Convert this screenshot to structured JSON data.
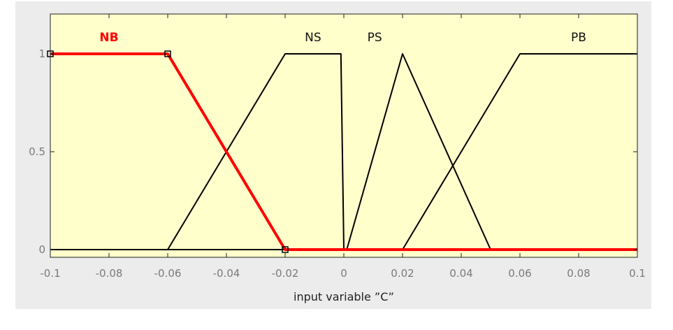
{
  "chart_data": {
    "type": "line",
    "title": "",
    "xlabel": "input variable ”C”",
    "ylabel": "",
    "xlim": [
      -0.1,
      0.1
    ],
    "ylim": [
      0,
      1
    ],
    "x_ticks": [
      -0.1,
      -0.08,
      -0.06,
      -0.04,
      -0.02,
      0,
      0.02,
      0.04,
      0.06,
      0.08,
      0.1
    ],
    "x_tick_labels": [
      "-0.1",
      "-0.08",
      "-0.06",
      "-0.04",
      "-0.02",
      "0",
      "0.02",
      "0.04",
      "0.06",
      "0.08",
      "0.1"
    ],
    "y_ticks": [
      0,
      0.5,
      1
    ],
    "y_tick_labels": [
      "0",
      "0.5",
      "1"
    ],
    "grid": false,
    "series": [
      {
        "name": "NB",
        "x": [
          -0.1,
          -0.06,
          -0.02,
          0.1
        ],
        "y": [
          1,
          1,
          0,
          0
        ],
        "color": "#ff0000",
        "selected": true
      },
      {
        "name": "NS",
        "x": [
          -0.1,
          -0.06,
          -0.02,
          -0.001,
          0,
          0.1
        ],
        "y": [
          0,
          0,
          1,
          1,
          0,
          0
        ],
        "color": "#000000"
      },
      {
        "name": "PS",
        "x": [
          -0.1,
          0.001,
          0.02,
          0.05,
          0.1
        ],
        "y": [
          0,
          0,
          1,
          0,
          0
        ],
        "color": "#000000"
      },
      {
        "name": "PB",
        "x": [
          -0.1,
          0.02,
          0.06,
          0.1
        ],
        "y": [
          0,
          0,
          1,
          1
        ],
        "color": "#000000"
      }
    ],
    "selected_handles": {
      "x": [
        -0.1,
        -0.06,
        -0.02
      ],
      "y": [
        1,
        1,
        0
      ]
    },
    "colors": {
      "plot_background": "#ffffcc",
      "figure_background": "#ececec",
      "selected": "#ff0000"
    }
  }
}
